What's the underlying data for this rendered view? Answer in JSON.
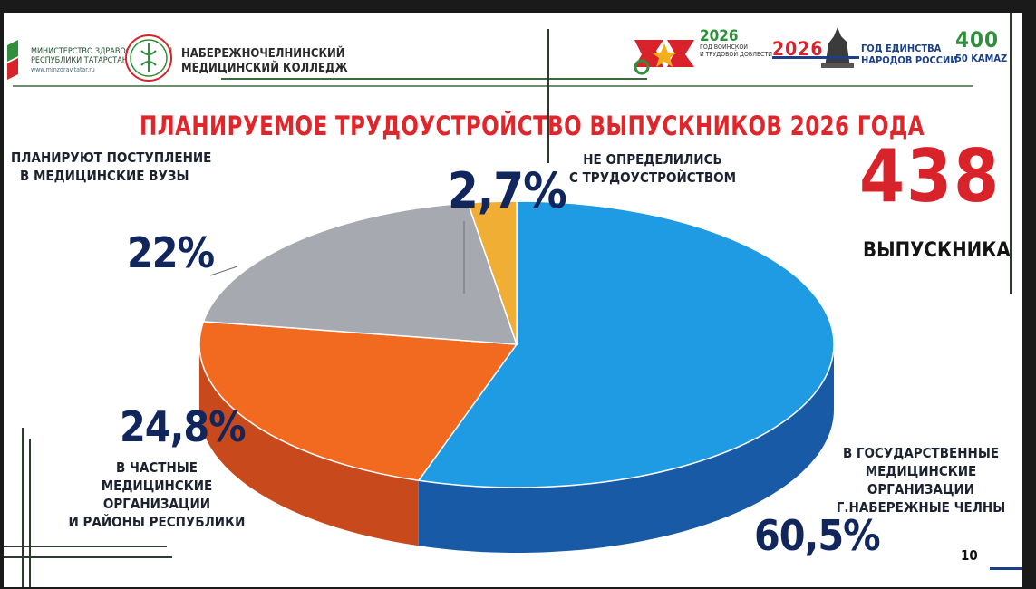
{
  "header": {
    "ministry_line1": "МИНИСТЕРСТВО ЗДРАВООХРАНЕНИЯ",
    "ministry_line2": "РЕСПУБЛИКИ ТАТАРСТАН",
    "ministry_url": "www.minzdrav.tatar.ru",
    "college_line1": "НАБЕРЕЖНОЧЕЛНИНСКИЙ",
    "college_line2": "МЕДИЦИНСКИЙ КОЛЛЕДЖ",
    "badge_year_left": "2026",
    "badge_left_text1": "ГОД ВОИНСКОЙ",
    "badge_left_text2": "И ТРУДОВОЙ ДОБЛЕСТИ",
    "badge_year_right": "2026",
    "badge_right_text1": "ГОД ЕДИНСТВА",
    "badge_right_text2": "НАРОДОВ РОССИИ",
    "kamaz_number": "400",
    "kamaz_text": "50 KAMAZ"
  },
  "chart_data": {
    "type": "pie",
    "title": "ПЛАНИРУЕМОЕ  ТРУДОУСТРОЙСТВО  ВЫПУСКНИКОВ 2026 ГОДА",
    "slices": [
      {
        "label": "В ГОСУДАРСТВЕННЫЕ МЕДИЦИНСКИЕ ОРГАНИЗАЦИИ Г.НАБЕРЕЖНЫЕ ЧЕЛНЫ",
        "value": 60.5,
        "value_label": "60,5%",
        "color": "#1f9be3",
        "side_color": "#195aa6"
      },
      {
        "label": "В ЧАСТНЫЕ МЕДИЦИНСКИЕ ОРГАНИЗАЦИИ И РАЙОНЫ РЕСПУБЛИКИ",
        "value": 24.8,
        "value_label": "24,8%",
        "color": "#f26a1f",
        "side_color": "#c84a1c"
      },
      {
        "label": "ПЛАНИРУЮТ ПОСТУПЛЕНИЕ В МЕДИЦИНСКИЕ ВУЗЫ",
        "value": 22,
        "value_label": "22%",
        "color": "#a6a9b0",
        "side_color": "#7c8088"
      },
      {
        "label": "НЕ ОПРЕДЕЛИЛИСЬ С ТРУДОУСТРОЙСТВОМ",
        "value": 2.7,
        "value_label": "2,7%",
        "color": "#f1ae35",
        "side_color": "#c98a21"
      }
    ],
    "label_lines": {
      "gov": [
        "В ГОСУДАРСТВЕННЫЕ",
        "МЕДИЦИНСКИЕ ОРГАНИЗАЦИИ",
        "Г.НАБЕРЕЖНЫЕ ЧЕЛНЫ"
      ],
      "private": [
        "В ЧАСТНЫЕ",
        "МЕДИЦИНСКИЕ ОРГАНИЗАЦИИ",
        "И РАЙОНЫ РЕСПУБЛИКИ"
      ],
      "university": [
        "ПЛАНИРУЮТ ПОСТУПЛЕНИЕ",
        "В МЕДИЦИНСКИЕ ВУЗЫ"
      ],
      "undecided": [
        "НЕ ОПРЕДЕЛИЛИСЬ",
        "С ТРУДОУСТРОЙСТВОМ"
      ]
    }
  },
  "total": {
    "number": "438",
    "caption": "ВЫПУСКНИКА"
  },
  "page_number": "10"
}
